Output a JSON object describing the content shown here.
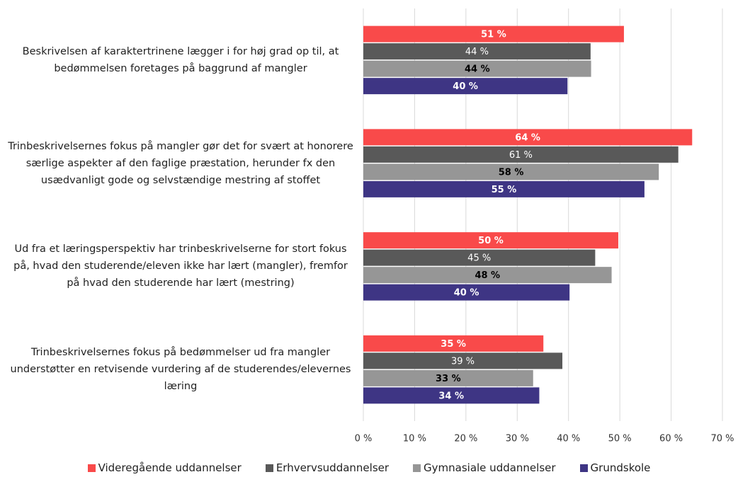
{
  "chart_data": {
    "type": "hbar",
    "categories": [
      "Beskrivelsen af karaktertrinene lægger i for høj grad op til, at bedømmelsen foretages på baggrund af mangler",
      "Trinbeskrivelsernes fokus på mangler gør det for svært at honorere særlige aspekter af den faglige præstation, herunder fx den usædvanligt gode og selvstændige mestring af stoffet",
      "Ud fra et læringsperspektiv har trinbeskrivelserne for stort fokus på, hvad den studerende/eleven ikke har lært (mangler), fremfor på hvad den studerende har lært (mestring)",
      "Trinbeskrivelsernes fokus på bedømmelser ud fra mangler understøtter en retvisende vurdering af de studerendes/elevernes læring"
    ],
    "series": [
      {
        "name": "Videregående uddannelser",
        "color": "#f94a4a",
        "values": [
          50.8,
          64.1,
          49.7,
          35.1
        ],
        "value_labels": [
          "51 %",
          "64 %",
          "50 %",
          "35 %"
        ]
      },
      {
        "name": "Erhvervsuddannelser",
        "color": "#595959",
        "values": [
          44.3,
          61.4,
          45.2,
          38.8
        ],
        "value_labels": [
          "44 %",
          "61 %",
          "45 %",
          "39 %"
        ]
      },
      {
        "name": "Gymnasiale uddannelser",
        "color": "#969696",
        "values": [
          44.4,
          57.6,
          48.4,
          33.1
        ],
        "value_labels": [
          "44 %",
          "58 %",
          "48 %",
          "33 %"
        ]
      },
      {
        "name": "Grundskole",
        "color": "#3e3584",
        "values": [
          39.8,
          54.8,
          40.2,
          34.3
        ],
        "value_labels": [
          "40 %",
          "55 %",
          "40 %",
          "34 %"
        ]
      }
    ],
    "xlim": [
      0,
      70
    ],
    "xticks": [
      {
        "value": 0,
        "label": "0 %"
      },
      {
        "value": 10,
        "label": "10 %"
      },
      {
        "value": 20,
        "label": "20 %"
      },
      {
        "value": 30,
        "label": "30 %"
      },
      {
        "value": 40,
        "label": "40 %"
      },
      {
        "value": 50,
        "label": "50 %"
      },
      {
        "value": 60,
        "label": "60 %"
      },
      {
        "value": 70,
        "label": "70 %"
      }
    ],
    "grid": true,
    "legend": "bottom"
  }
}
